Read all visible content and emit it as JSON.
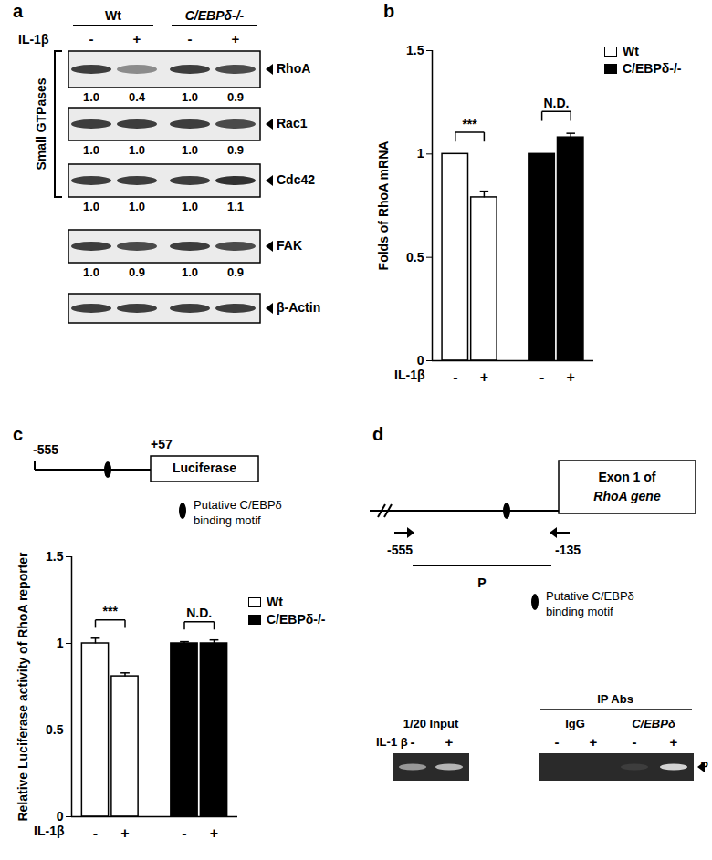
{
  "panel_labels": [
    "a",
    "b",
    "c",
    "d"
  ],
  "panel_a": {
    "groups": [
      "Wt",
      "C/EBPδ-/-"
    ],
    "treatment": "IL-1β",
    "lanes": [
      "-",
      "+",
      "-",
      "+"
    ],
    "bracket": {
      "label": "Small GTPases",
      "blots": [
        "RhoA",
        "Rac1",
        "Cdc42"
      ]
    },
    "blots": [
      {
        "name": "RhoA",
        "quantification": [
          "1.0",
          "0.4",
          "1.0",
          "0.9"
        ]
      },
      {
        "name": "Rac1",
        "quantification": [
          "1.0",
          "1.0",
          "1.0",
          "0.9"
        ]
      },
      {
        "name": "Cdc42",
        "quantification": [
          "1.0",
          "1.0",
          "1.0",
          "1.1"
        ]
      },
      {
        "name": "FAK",
        "quantification": [
          "1.0",
          "0.9",
          "1.0",
          "0.9"
        ]
      },
      {
        "name": "β-Actin"
      }
    ]
  },
  "chart_data": [
    {
      "type": "bar",
      "ylabel": "Folds of RhoA mRNA",
      "xlabel": "IL-1β",
      "categories": [
        "-",
        "+"
      ],
      "series": [
        {
          "name": "Wt",
          "color": "#ffffff",
          "values": [
            1,
            0.79
          ],
          "errors": [
            0,
            0.03
          ]
        },
        {
          "name": "C/EBPδ-/-",
          "color": "#000000",
          "values": [
            1,
            1.08
          ],
          "errors": [
            0,
            0.02
          ]
        }
      ],
      "annotations": [
        {
          "series": "Wt",
          "text": "***"
        },
        {
          "series": "C/EBPδ-/-",
          "text": "N.D."
        }
      ],
      "ylim": [
        0,
        1.5
      ],
      "yticks": [
        0,
        0.5,
        1,
        1.5
      ],
      "legend": "top-right"
    },
    {
      "type": "bar",
      "ylabel": "Relative Luciferase activity of RhoA reporter",
      "xlabel": "IL-1β",
      "categories": [
        "-",
        "+"
      ],
      "series": [
        {
          "name": "Wt",
          "color": "#ffffff",
          "values": [
            1,
            0.81
          ],
          "errors": [
            0.03,
            0.02
          ]
        },
        {
          "name": "C/EBPδ-/-",
          "color": "#000000",
          "values": [
            1,
            1
          ],
          "errors": [
            0.01,
            0.02
          ]
        }
      ],
      "annotations": [
        {
          "series": "Wt",
          "text": "***"
        },
        {
          "series": "C/EBPδ-/-",
          "text": "N.D."
        }
      ],
      "ylim": [
        0,
        1.5
      ],
      "yticks": [
        0,
        0.5,
        1,
        1.5
      ],
      "legend": "top-right"
    }
  ],
  "panel_c_diagram": {
    "start": "-555",
    "end": "+57",
    "box": "Luciferase",
    "motif_legend": [
      "Putative C/EBPδ",
      "binding motif"
    ]
  },
  "panel_d": {
    "gene_box": [
      "Exon 1 of",
      "RhoA gene"
    ],
    "primer_start": "-555",
    "primer_end": "-135",
    "product": "P",
    "motif_legend": [
      "Putative C/EBPδ",
      "binding motif"
    ],
    "gel": {
      "input_label": "1/20 Input",
      "ip_label": "IP Abs",
      "antibodies": [
        "IgG",
        "C/EBPδ"
      ],
      "treatment": "IL-1 β",
      "lanes": [
        "-",
        "+",
        "-",
        "+",
        "-",
        "+"
      ],
      "band_intensity": [
        0.55,
        0.7,
        0,
        0,
        0.1,
        0.85
      ],
      "band_label": "P"
    }
  }
}
